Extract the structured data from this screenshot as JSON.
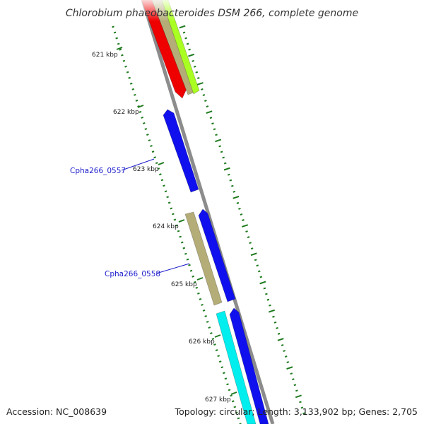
{
  "title": "Chlorobium phaeobacteroides DSM 266, complete genome",
  "accession": "Accession: NC_008639",
  "topology": "Topology: circular; Length: 3,133,902 bp; Genes: 2,705",
  "colors": {
    "backbone": "#8c8c8c",
    "tick": "#1e7a1e",
    "label_line": "#1a1acc",
    "label_text": "#1a1acc"
  },
  "kbp_labels": [
    "621 kbp",
    "622 kbp",
    "623 kbp",
    "624 kbp",
    "625 kbp",
    "626 kbp",
    "627 kbp"
  ],
  "genes": [
    {
      "name": "gene-red",
      "color": "#ee0000",
      "strand": "forward"
    },
    {
      "name": "gene-tan-1",
      "color": "#b5ad78",
      "strand": "forward"
    },
    {
      "name": "gene-lime",
      "color": "#aaff22",
      "strand": "forward"
    },
    {
      "name": "gene-blue-1",
      "color": "#1010ee",
      "strand": "reverse"
    },
    {
      "name": "gene-tan-2",
      "color": "#b5ad78",
      "strand": "reverse"
    },
    {
      "name": "gene-blue-2",
      "color": "#1010ee",
      "strand": "forward"
    },
    {
      "name": "gene-cyan",
      "color": "#00eeee",
      "strand": "reverse"
    },
    {
      "name": "gene-blue-3",
      "color": "#1010ee",
      "strand": "forward"
    }
  ],
  "gene_labels": [
    {
      "text": "Cpha266_0557"
    },
    {
      "text": "Cpha266_0558"
    }
  ]
}
